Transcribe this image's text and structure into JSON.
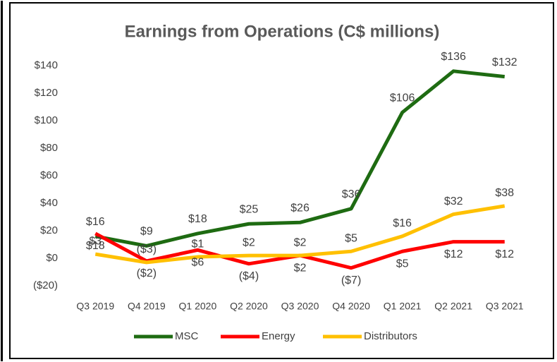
{
  "chart_data": {
    "type": "line",
    "title": "Earnings from Operations (C$ millions)",
    "categories": [
      "Q3 2019",
      "Q4 2019",
      "Q1 2020",
      "Q2 2020",
      "Q3 2020",
      "Q4 2020",
      "Q1 2021",
      "Q2 2021",
      "Q3 2021"
    ],
    "series": [
      {
        "name": "MSC",
        "color": "#1e6b12",
        "values": [
          16,
          9,
          18,
          25,
          26,
          36,
          106,
          136,
          132
        ],
        "value_labels": [
          "$16",
          "$9",
          "$18",
          "$25",
          "$26",
          "$36",
          "$106",
          "$136",
          "$132"
        ]
      },
      {
        "name": "Energy",
        "color": "#ff0000",
        "values": [
          18,
          -2,
          6,
          -4,
          2,
          -7,
          5,
          12,
          12
        ],
        "value_labels": [
          "$18",
          "($2)",
          "$6",
          "($4)",
          "$2",
          "($7)",
          "$5",
          "$12",
          "$12"
        ]
      },
      {
        "name": "Distributors",
        "color": "#ffc000",
        "values": [
          3,
          -3,
          1,
          2,
          2,
          5,
          16,
          32,
          38
        ],
        "value_labels": [
          "$3",
          "($3)",
          "$1",
          "$2",
          "$2",
          "$5",
          "$16",
          "$32",
          "$38"
        ]
      }
    ],
    "ylim": [
      -20,
      140
    ],
    "yticks": [
      {
        "value": -20,
        "label": "($20)"
      },
      {
        "value": 0,
        "label": "$0"
      },
      {
        "value": 20,
        "label": "$20"
      },
      {
        "value": 40,
        "label": "$40"
      },
      {
        "value": 60,
        "label": "$60"
      },
      {
        "value": 80,
        "label": "$80"
      },
      {
        "value": 100,
        "label": "$100"
      },
      {
        "value": 120,
        "label": "$120"
      },
      {
        "value": 140,
        "label": "$140"
      }
    ],
    "grid": false,
    "legend": "bottom"
  }
}
